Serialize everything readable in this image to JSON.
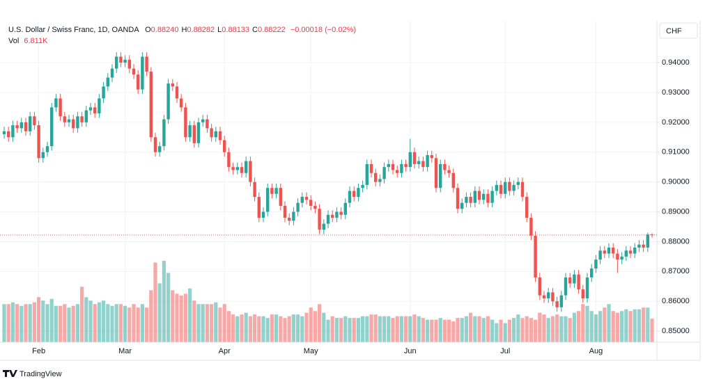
{
  "chart_data": {
    "type": "candlestick",
    "title": "U.S. Dollar / Swiss Franc, 1D, OANDA",
    "ohlc_labels": [
      {
        "key": "O",
        "value": "0.88240"
      },
      {
        "key": "H",
        "value": "0.88282"
      },
      {
        "key": "L",
        "value": "0.88133"
      },
      {
        "key": "C",
        "value": "0.88222"
      }
    ],
    "change": "−0.00018 (−0.02%)",
    "volume_label": "Vol",
    "volume_value": "6.811K",
    "currency": "CHF",
    "branding": "TradingView",
    "up_color": "#26a69a",
    "down_color": "#ef5350",
    "grid": true,
    "ylim": [
      0.8463,
      0.954
    ],
    "yticks": [
      {
        "value": 0.94,
        "label": "0.94000"
      },
      {
        "value": 0.93,
        "label": "0.93000"
      },
      {
        "value": 0.92,
        "label": "0.92000"
      },
      {
        "value": 0.91,
        "label": "0.91000"
      },
      {
        "value": 0.9,
        "label": "0.90000"
      },
      {
        "value": 0.89,
        "label": "0.89000"
      },
      {
        "value": 0.88,
        "label": "0.88000"
      },
      {
        "value": 0.87,
        "label": "0.87000"
      },
      {
        "value": 0.86,
        "label": "0.86000"
      },
      {
        "value": 0.85,
        "label": "0.85000"
      }
    ],
    "xticks": [
      {
        "value": 8,
        "label": "Feb"
      },
      {
        "value": 28,
        "label": "Mar"
      },
      {
        "value": 51,
        "label": "Apr"
      },
      {
        "value": 71,
        "label": "May"
      },
      {
        "value": 94,
        "label": "Jun"
      },
      {
        "value": 116,
        "label": "Jul"
      },
      {
        "value": 137,
        "label": "Aug"
      }
    ],
    "candles": [
      [
        0.916,
        0.9185,
        0.9145,
        0.917
      ],
      [
        0.917,
        0.9185,
        0.9135,
        0.915
      ],
      [
        0.915,
        0.9205,
        0.9135,
        0.919
      ],
      [
        0.919,
        0.9205,
        0.9165,
        0.918
      ],
      [
        0.918,
        0.9215,
        0.9165,
        0.92
      ],
      [
        0.92,
        0.9215,
        0.9155,
        0.917
      ],
      [
        0.917,
        0.9235,
        0.9155,
        0.922
      ],
      [
        0.922,
        0.9235,
        0.9175,
        0.919
      ],
      [
        0.919,
        0.9205,
        0.9065,
        0.908
      ],
      [
        0.908,
        0.9115,
        0.9065,
        0.91
      ],
      [
        0.91,
        0.9135,
        0.9085,
        0.912
      ],
      [
        0.912,
        0.9265,
        0.9105,
        0.925
      ],
      [
        0.925,
        0.9295,
        0.9235,
        0.928
      ],
      [
        0.928,
        0.9295,
        0.9205,
        0.922
      ],
      [
        0.922,
        0.9235,
        0.9185,
        0.92
      ],
      [
        0.92,
        0.9225,
        0.9185,
        0.921
      ],
      [
        0.921,
        0.9225,
        0.9165,
        0.918
      ],
      [
        0.918,
        0.9235,
        0.9165,
        0.922
      ],
      [
        0.922,
        0.9235,
        0.9185,
        0.92
      ],
      [
        0.92,
        0.9255,
        0.9185,
        0.924
      ],
      [
        0.924,
        0.9265,
        0.9225,
        0.925
      ],
      [
        0.925,
        0.9265,
        0.9215,
        0.923
      ],
      [
        0.923,
        0.9295,
        0.9215,
        0.928
      ],
      [
        0.928,
        0.9335,
        0.9265,
        0.932
      ],
      [
        0.932,
        0.9365,
        0.9305,
        0.935
      ],
      [
        0.935,
        0.9395,
        0.9335,
        0.938
      ],
      [
        0.938,
        0.9435,
        0.9365,
        0.942
      ],
      [
        0.942,
        0.9435,
        0.9385,
        0.94
      ],
      [
        0.94,
        0.9425,
        0.9385,
        0.941
      ],
      [
        0.941,
        0.9425,
        0.9365,
        0.938
      ],
      [
        0.938,
        0.9395,
        0.9345,
        0.936
      ],
      [
        0.936,
        0.9375,
        0.9295,
        0.931
      ],
      [
        0.931,
        0.9435,
        0.9295,
        0.942
      ],
      [
        0.942,
        0.9435,
        0.9355,
        0.937
      ],
      [
        0.937,
        0.9385,
        0.9135,
        0.915
      ],
      [
        0.915,
        0.9165,
        0.9085,
        0.91
      ],
      [
        0.91,
        0.9135,
        0.9085,
        0.912
      ],
      [
        0.912,
        0.9225,
        0.9105,
        0.921
      ],
      [
        0.921,
        0.9345,
        0.9195,
        0.933
      ],
      [
        0.933,
        0.9345,
        0.9305,
        0.932
      ],
      [
        0.932,
        0.9335,
        0.9265,
        0.928
      ],
      [
        0.928,
        0.9295,
        0.9235,
        0.925
      ],
      [
        0.925,
        0.9265,
        0.9135,
        0.915
      ],
      [
        0.915,
        0.9205,
        0.9135,
        0.919
      ],
      [
        0.919,
        0.9205,
        0.9115,
        0.913
      ],
      [
        0.913,
        0.9215,
        0.9115,
        0.92
      ],
      [
        0.92,
        0.9225,
        0.9185,
        0.921
      ],
      [
        0.921,
        0.9225,
        0.9165,
        0.918
      ],
      [
        0.918,
        0.9195,
        0.9135,
        0.915
      ],
      [
        0.915,
        0.9185,
        0.9135,
        0.917
      ],
      [
        0.917,
        0.9185,
        0.9125,
        0.914
      ],
      [
        0.914,
        0.9155,
        0.9085,
        0.91
      ],
      [
        0.91,
        0.9115,
        0.9035,
        0.905
      ],
      [
        0.905,
        0.9065,
        0.9025,
        0.904
      ],
      [
        0.904,
        0.9065,
        0.9025,
        0.905
      ],
      [
        0.905,
        0.9065,
        0.9015,
        0.903
      ],
      [
        0.903,
        0.9085,
        0.9015,
        0.907
      ],
      [
        0.907,
        0.9085,
        0.8985,
        0.9
      ],
      [
        0.9,
        0.9015,
        0.8935,
        0.895
      ],
      [
        0.895,
        0.8965,
        0.8865,
        0.888
      ],
      [
        0.888,
        0.8915,
        0.8865,
        0.89
      ],
      [
        0.89,
        0.8995,
        0.8885,
        0.898
      ],
      [
        0.898,
        0.8995,
        0.8945,
        0.896
      ],
      [
        0.896,
        0.8995,
        0.8945,
        0.898
      ],
      [
        0.898,
        0.8995,
        0.8905,
        0.892
      ],
      [
        0.892,
        0.8935,
        0.8865,
        0.888
      ],
      [
        0.888,
        0.8895,
        0.8855,
        0.887
      ],
      [
        0.887,
        0.8915,
        0.8855,
        0.89
      ],
      [
        0.89,
        0.8945,
        0.8885,
        0.893
      ],
      [
        0.893,
        0.8965,
        0.8915,
        0.895
      ],
      [
        0.895,
        0.8965,
        0.8925,
        0.894
      ],
      [
        0.894,
        0.8955,
        0.8905,
        0.892
      ],
      [
        0.892,
        0.8935,
        0.8895,
        0.891
      ],
      [
        0.891,
        0.8925,
        0.8825,
        0.884
      ],
      [
        0.884,
        0.8875,
        0.8825,
        0.886
      ],
      [
        0.886,
        0.8905,
        0.8845,
        0.889
      ],
      [
        0.889,
        0.8905,
        0.8865,
        0.888
      ],
      [
        0.888,
        0.8915,
        0.8865,
        0.89
      ],
      [
        0.89,
        0.8915,
        0.8875,
        0.889
      ],
      [
        0.889,
        0.8945,
        0.8875,
        0.893
      ],
      [
        0.893,
        0.8985,
        0.8915,
        0.897
      ],
      [
        0.897,
        0.8985,
        0.8935,
        0.895
      ],
      [
        0.895,
        0.8995,
        0.8935,
        0.898
      ],
      [
        0.898,
        0.9005,
        0.8965,
        0.899
      ],
      [
        0.899,
        0.9075,
        0.8975,
        0.906
      ],
      [
        0.906,
        0.9075,
        0.9015,
        0.903
      ],
      [
        0.903,
        0.9045,
        0.8985,
        0.9
      ],
      [
        0.9,
        0.9025,
        0.8985,
        0.901
      ],
      [
        0.901,
        0.9065,
        0.8995,
        0.905
      ],
      [
        0.905,
        0.9075,
        0.9035,
        0.906
      ],
      [
        0.906,
        0.9075,
        0.9025,
        0.904
      ],
      [
        0.904,
        0.9055,
        0.9015,
        0.903
      ],
      [
        0.903,
        0.9075,
        0.9015,
        0.906
      ],
      [
        0.906,
        0.9075,
        0.9035,
        0.905
      ],
      [
        0.905,
        0.9145,
        0.9035,
        0.91
      ],
      [
        0.91,
        0.9115,
        0.9045,
        0.906
      ],
      [
        0.906,
        0.9085,
        0.9045,
        0.907
      ],
      [
        0.907,
        0.9085,
        0.9035,
        0.905
      ],
      [
        0.905,
        0.9105,
        0.9035,
        0.909
      ],
      [
        0.909,
        0.9105,
        0.9065,
        0.908
      ],
      [
        0.908,
        0.9095,
        0.8965,
        0.898
      ],
      [
        0.898,
        0.9075,
        0.8965,
        0.906
      ],
      [
        0.906,
        0.9075,
        0.9025,
        0.904
      ],
      [
        0.904,
        0.9055,
        0.9015,
        0.903
      ],
      [
        0.903,
        0.9045,
        0.8965,
        0.898
      ],
      [
        0.898,
        0.8995,
        0.8895,
        0.891
      ],
      [
        0.891,
        0.8945,
        0.8895,
        0.893
      ],
      [
        0.893,
        0.8965,
        0.8915,
        0.895
      ],
      [
        0.895,
        0.8965,
        0.8915,
        0.893
      ],
      [
        0.893,
        0.8985,
        0.8915,
        0.897
      ],
      [
        0.897,
        0.8985,
        0.8925,
        0.894
      ],
      [
        0.894,
        0.8975,
        0.8925,
        0.896
      ],
      [
        0.896,
        0.8975,
        0.8915,
        0.893
      ],
      [
        0.893,
        0.8985,
        0.8915,
        0.897
      ],
      [
        0.897,
        0.9005,
        0.8955,
        0.899
      ],
      [
        0.899,
        0.9005,
        0.8945,
        0.896
      ],
      [
        0.896,
        0.9015,
        0.8945,
        0.9
      ],
      [
        0.9,
        0.9015,
        0.8955,
        0.897
      ],
      [
        0.897,
        0.9005,
        0.8955,
        0.899
      ],
      [
        0.899,
        0.9015,
        0.8975,
        0.9
      ],
      [
        0.9,
        0.9015,
        0.8935,
        0.895
      ],
      [
        0.895,
        0.8965,
        0.8865,
        0.888
      ],
      [
        0.888,
        0.8895,
        0.8805,
        0.882
      ],
      [
        0.882,
        0.8835,
        0.8665,
        0.868
      ],
      [
        0.868,
        0.8695,
        0.8605,
        0.862
      ],
      [
        0.862,
        0.8635,
        0.8595,
        0.861
      ],
      [
        0.861,
        0.8645,
        0.8595,
        0.863
      ],
      [
        0.863,
        0.8645,
        0.8585,
        0.86
      ],
      [
        0.86,
        0.8615,
        0.8565,
        0.858
      ],
      [
        0.858,
        0.8635,
        0.8565,
        0.862
      ],
      [
        0.862,
        0.8695,
        0.8605,
        0.868
      ],
      [
        0.868,
        0.8695,
        0.8645,
        0.866
      ],
      [
        0.866,
        0.8705,
        0.8645,
        0.869
      ],
      [
        0.869,
        0.8705,
        0.8625,
        0.864
      ],
      [
        0.864,
        0.8655,
        0.8595,
        0.861
      ],
      [
        0.861,
        0.8695,
        0.8595,
        0.868
      ],
      [
        0.868,
        0.8725,
        0.8665,
        0.871
      ],
      [
        0.871,
        0.8755,
        0.8695,
        0.874
      ],
      [
        0.874,
        0.8785,
        0.8725,
        0.877
      ],
      [
        0.877,
        0.8785,
        0.8745,
        0.876
      ],
      [
        0.876,
        0.8795,
        0.8745,
        0.878
      ],
      [
        0.878,
        0.8795,
        0.8745,
        0.876
      ],
      [
        0.876,
        0.8775,
        0.8695,
        0.874
      ],
      [
        0.874,
        0.8765,
        0.8725,
        0.875
      ],
      [
        0.875,
        0.8785,
        0.8735,
        0.877
      ],
      [
        0.877,
        0.8785,
        0.8745,
        0.876
      ],
      [
        0.876,
        0.8795,
        0.8745,
        0.878
      ],
      [
        0.878,
        0.8805,
        0.8765,
        0.879
      ],
      [
        0.879,
        0.8805,
        0.8765,
        0.878
      ],
      [
        0.878,
        0.883,
        0.8765,
        0.8824
      ],
      [
        0.8824,
        0.88282,
        0.88133,
        0.88222
      ]
    ],
    "volumes": [
      11,
      11,
      11.5,
      11,
      10.5,
      11,
      11,
      11.5,
      13,
      12,
      11,
      12.5,
      10.5,
      10.5,
      11,
      10,
      10.5,
      11,
      16,
      13,
      12,
      11,
      11.5,
      12,
      11,
      10.5,
      11,
      11,
      10.5,
      10,
      11,
      10,
      11,
      10,
      15,
      23,
      17,
      23.5,
      20,
      15,
      14,
      13.5,
      14,
      15.5,
      12,
      11,
      11,
      11,
      11,
      11.5,
      10,
      11,
      9,
      8,
      7.5,
      8,
      8.5,
      7.5,
      8,
      7.5,
      7.5,
      7,
      8,
      8,
      7.5,
      7,
      7.5,
      8,
      8,
      7.5,
      8.5,
      10,
      9,
      11,
      8.5,
      6.5,
      7.5,
      7,
      7,
      7.5,
      7,
      7,
      7,
      7.5,
      7.5,
      8,
      8,
      7.5,
      7.5,
      7.5,
      7,
      7.5,
      7.5,
      7.5,
      7.5,
      8,
      7.5,
      7,
      6.5,
      6.5,
      6.5,
      7,
      6.5,
      6.5,
      6,
      7,
      7,
      7.5,
      8.5,
      7.5,
      7.5,
      7,
      7.5,
      6.5,
      5.5,
      6.5,
      5.5,
      6.5,
      7,
      8,
      7,
      7.5,
      7,
      6.5,
      8.5,
      8,
      7,
      7.5,
      8,
      7.5,
      7.5,
      7,
      8.5,
      9,
      11,
      10.5,
      9,
      8,
      9,
      10,
      11,
      9,
      8.5,
      9,
      9.5,
      9,
      9.5,
      9.5,
      10,
      10,
      6.811
    ]
  }
}
